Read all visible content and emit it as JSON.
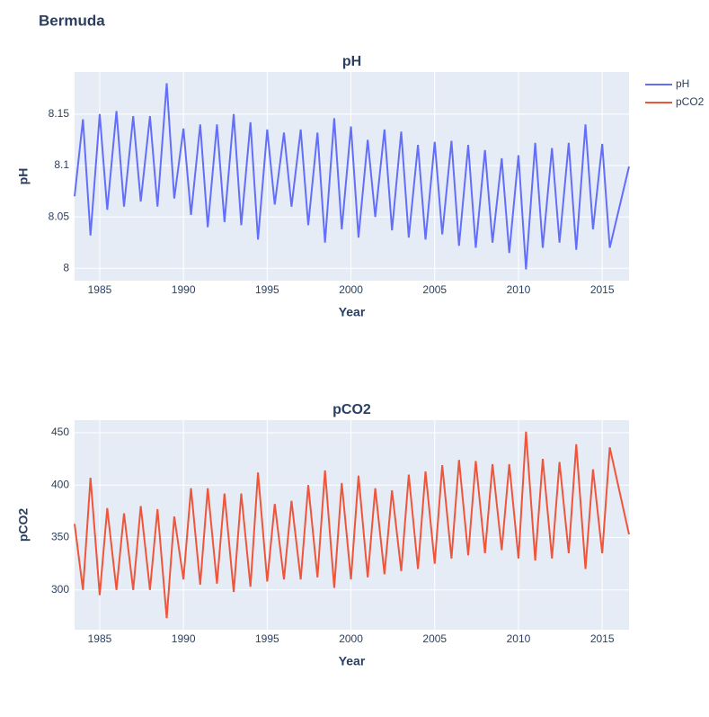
{
  "title": "Bermuda",
  "chart_data": [
    {
      "type": "line",
      "title": "pH",
      "x_label": "Year",
      "y_label": "pH",
      "x": [
        1983.5,
        1984,
        1984.45,
        1985,
        1985.45,
        1986,
        1986.45,
        1987,
        1987.45,
        1988,
        1988.45,
        1989,
        1989.45,
        1990,
        1990.45,
        1991,
        1991.45,
        1992,
        1992.45,
        1993,
        1993.45,
        1994,
        1994.45,
        1995,
        1995.45,
        1996,
        1996.45,
        1997,
        1997.45,
        1998,
        1998.45,
        1999,
        1999.45,
        2000,
        2000.45,
        2001,
        2001.45,
        2002,
        2002.45,
        2003,
        2003.45,
        2004,
        2004.45,
        2005,
        2005.45,
        2006,
        2006.45,
        2007,
        2007.45,
        2008,
        2008.45,
        2009,
        2009.45,
        2010,
        2010.45,
        2011,
        2011.45,
        2012,
        2012.45,
        2013,
        2013.45,
        2014,
        2014.45,
        2015,
        2015.45,
        2016.6
      ],
      "series": [
        {
          "name": "pH",
          "color": "#636efa",
          "values": [
            8.07,
            8.145,
            8.032,
            8.15,
            8.057,
            8.153,
            8.06,
            8.148,
            8.065,
            8.148,
            8.06,
            8.18,
            8.068,
            8.136,
            8.052,
            8.14,
            8.04,
            8.14,
            8.045,
            8.15,
            8.042,
            8.142,
            8.028,
            8.135,
            8.062,
            8.132,
            8.06,
            8.135,
            8.042,
            8.132,
            8.025,
            8.146,
            8.038,
            8.138,
            8.03,
            8.125,
            8.05,
            8.135,
            8.037,
            8.133,
            8.03,
            8.12,
            8.028,
            8.123,
            8.033,
            8.124,
            8.022,
            8.12,
            8.02,
            8.115,
            8.025,
            8.107,
            8.015,
            8.11,
            7.999,
            8.122,
            8.02,
            8.117,
            8.025,
            8.122,
            8.018,
            8.14,
            8.038,
            8.121,
            8.02,
            8.099
          ]
        }
      ],
      "xlim": [
        1983.5,
        2016.6
      ],
      "xticks": [
        1985,
        1990,
        1995,
        2000,
        2005,
        2010,
        2015
      ],
      "ylim": [
        7.988,
        8.191
      ],
      "yticks": [
        8,
        8.05,
        8.1,
        8.15
      ],
      "grid": true
    },
    {
      "type": "line",
      "title": "pCO2",
      "x_label": "Year",
      "y_label": "pCO2",
      "x": [
        1983.5,
        1984,
        1984.45,
        1985,
        1985.45,
        1986,
        1986.45,
        1987,
        1987.45,
        1988,
        1988.45,
        1989,
        1989.45,
        1990,
        1990.45,
        1991,
        1991.45,
        1992,
        1992.45,
        1993,
        1993.45,
        1994,
        1994.45,
        1995,
        1995.45,
        1996,
        1996.45,
        1997,
        1997.45,
        1998,
        1998.45,
        1999,
        1999.45,
        2000,
        2000.45,
        2001,
        2001.45,
        2002,
        2002.45,
        2003,
        2003.45,
        2004,
        2004.45,
        2005,
        2005.45,
        2006,
        2006.45,
        2007,
        2007.45,
        2008,
        2008.45,
        2009,
        2009.45,
        2010,
        2010.45,
        2011,
        2011.45,
        2012,
        2012.45,
        2013,
        2013.45,
        2014,
        2014.45,
        2015,
        2015.45,
        2016.6
      ],
      "series": [
        {
          "name": "pCO2",
          "color": "#ef553b",
          "values": [
            363,
            300,
            407,
            295,
            378,
            300,
            373,
            300,
            380,
            300,
            377,
            273,
            370,
            310,
            397,
            305,
            397,
            306,
            392,
            298,
            392,
            303,
            412,
            308,
            382,
            310,
            385,
            310,
            400,
            312,
            414,
            302,
            402,
            310,
            409,
            312,
            397,
            315,
            395,
            318,
            410,
            320,
            413,
            325,
            419,
            330,
            424,
            333,
            423,
            335,
            420,
            338,
            420,
            330,
            451,
            328,
            425,
            330,
            422,
            335,
            439,
            320,
            415,
            335,
            436,
            353
          ]
        }
      ],
      "xlim": [
        1983.5,
        2016.6
      ],
      "xticks": [
        1985,
        1990,
        1995,
        2000,
        2005,
        2010,
        2015
      ],
      "ylim": [
        262,
        462
      ],
      "yticks": [
        300,
        350,
        400,
        450
      ],
      "grid": true
    }
  ]
}
